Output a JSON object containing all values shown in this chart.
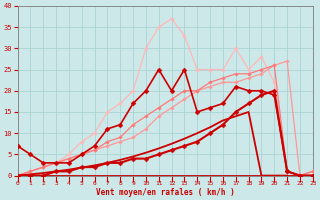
{
  "bg_color": "#cce8e8",
  "grid_color": "#aad4d4",
  "xlabel": "Vent moyen/en rafales ( km/h )",
  "xlim": [
    0,
    23
  ],
  "ylim": [
    0,
    40
  ],
  "yticks": [
    0,
    5,
    10,
    15,
    20,
    25,
    30,
    35,
    40
  ],
  "xticks": [
    0,
    1,
    2,
    3,
    4,
    5,
    6,
    7,
    8,
    9,
    10,
    11,
    12,
    13,
    14,
    15,
    16,
    17,
    18,
    19,
    20,
    21,
    22,
    23
  ],
  "lines": [
    {
      "x": [
        0,
        1,
        2,
        3,
        4,
        5,
        6,
        7,
        8,
        9,
        10,
        11,
        12,
        13,
        14,
        15,
        16,
        17,
        18,
        19,
        20,
        21,
        22,
        23
      ],
      "y": [
        0,
        1,
        2,
        3,
        5,
        8,
        10,
        15,
        17,
        20,
        30,
        35,
        37,
        33,
        25,
        25,
        25,
        30,
        25,
        28,
        22,
        1,
        0,
        1
      ],
      "color": "#ffb8b8",
      "lw": 0.9,
      "marker": "D",
      "ms": 1.8,
      "alpha": 1.0
    },
    {
      "x": [
        0,
        1,
        2,
        3,
        4,
        5,
        6,
        7,
        8,
        9,
        10,
        11,
        12,
        13,
        14,
        15,
        16,
        17,
        18,
        19,
        20,
        21,
        22,
        23
      ],
      "y": [
        0,
        1,
        2,
        3,
        4,
        5,
        6,
        7,
        8,
        9,
        11,
        14,
        16,
        18,
        20,
        21,
        22,
        22,
        23,
        24,
        26,
        27,
        0,
        1
      ],
      "color": "#ff9898",
      "lw": 0.9,
      "marker": "D",
      "ms": 1.8,
      "alpha": 1.0
    },
    {
      "x": [
        0,
        1,
        2,
        3,
        4,
        5,
        6,
        7,
        8,
        9,
        10,
        11,
        12,
        13,
        14,
        15,
        16,
        17,
        18,
        19,
        20,
        21,
        22,
        23
      ],
      "y": [
        0,
        1,
        2,
        3,
        4,
        5,
        6,
        8,
        9,
        12,
        14,
        16,
        18,
        20,
        20,
        22,
        23,
        24,
        24,
        25,
        26,
        1,
        0,
        1
      ],
      "color": "#ff7878",
      "lw": 0.9,
      "marker": "D",
      "ms": 1.8,
      "alpha": 1.0
    },
    {
      "x": [
        0,
        1,
        2,
        3,
        4,
        5,
        6,
        7,
        8,
        9,
        10,
        11,
        12,
        13,
        14,
        15,
        16,
        17,
        18,
        19,
        20,
        21,
        22,
        23
      ],
      "y": [
        7,
        5,
        3,
        3,
        3,
        5,
        7,
        11,
        12,
        17,
        20,
        25,
        20,
        25,
        15,
        16,
        17,
        21,
        20,
        20,
        19,
        1,
        0,
        0
      ],
      "color": "#cc0000",
      "lw": 1.2,
      "marker": "D",
      "ms": 2.5,
      "alpha": 1.0
    },
    {
      "x": [
        0,
        1,
        2,
        3,
        4,
        5,
        6,
        7,
        8,
        9,
        10,
        11,
        12,
        13,
        14,
        15,
        16,
        17,
        18,
        19,
        20,
        21,
        22,
        23
      ],
      "y": [
        0,
        0,
        0,
        1,
        1,
        2,
        2,
        3,
        3,
        4,
        4,
        5,
        6,
        7,
        8,
        10,
        12,
        15,
        17,
        19,
        20,
        1,
        0,
        0
      ],
      "color": "#cc0000",
      "lw": 1.5,
      "marker": "D",
      "ms": 2.5,
      "alpha": 1.0
    },
    {
      "x": [
        0,
        1,
        2,
        3,
        4,
        5,
        6,
        7,
        8,
        9,
        10,
        11,
        12,
        13,
        14,
        15,
        16,
        17,
        18,
        19,
        20,
        21
      ],
      "y": [
        0,
        0.3,
        0.6,
        1.0,
        1.4,
        1.9,
        2.4,
        3.0,
        3.7,
        4.5,
        5.4,
        6.4,
        7.5,
        8.7,
        10,
        11.4,
        13,
        14,
        15,
        0,
        0,
        0
      ],
      "color": "#cc0000",
      "lw": 1.3,
      "marker": null,
      "ms": 0,
      "alpha": 1.0
    },
    {
      "x": [
        0,
        23
      ],
      "y": [
        0,
        0
      ],
      "color": "#cc0000",
      "lw": 1.3,
      "marker": null,
      "ms": 0,
      "alpha": 1.0
    }
  ]
}
